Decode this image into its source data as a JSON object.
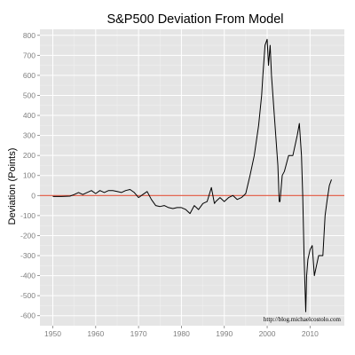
{
  "chart_data": {
    "type": "line",
    "title": "S&P500 Deviation From Model",
    "xlabel": "",
    "ylabel": "Deviation (Points)",
    "xlim": [
      1947,
      2018
    ],
    "ylim": [
      -650,
      830
    ],
    "x_ticks": [
      1950,
      1960,
      1970,
      1980,
      1990,
      2000,
      2010
    ],
    "y_ticks": [
      -600,
      -500,
      -400,
      -300,
      -200,
      -100,
      0,
      100,
      200,
      300,
      400,
      500,
      600,
      700,
      800
    ],
    "grid": true,
    "legend": "none",
    "series": [
      {
        "x": [
          1950,
          1952,
          1954,
          1955,
          1956,
          1957,
          1958,
          1959,
          1960,
          1961,
          1962,
          1963,
          1964,
          1965,
          1966,
          1967,
          1968,
          1969,
          1970,
          1971,
          1972,
          1973,
          1974,
          1975,
          1976,
          1977,
          1978,
          1979,
          1980,
          1981,
          1982,
          1983,
          1984,
          1985,
          1986,
          1987,
          1987.7,
          1988,
          1989,
          1990,
          1991,
          1992,
          1993,
          1994,
          1995,
          1996,
          1997,
          1998,
          1998.7,
          1999,
          1999.5,
          2000,
          2000.3,
          2000.7,
          2001,
          2001.5,
          2002,
          2002.5,
          2002.8,
          2003,
          2003.5,
          2004,
          2005,
          2006,
          2007,
          2007.5,
          2008,
          2008.3,
          2008.6,
          2009,
          2009.2,
          2009.5,
          2010,
          2010.5,
          2011,
          2011.5,
          2012,
          2013,
          2013.5,
          2014,
          2014.5,
          2015
        ],
        "values": [
          -5,
          -5,
          -3,
          5,
          15,
          5,
          15,
          25,
          10,
          25,
          15,
          25,
          25,
          20,
          15,
          25,
          30,
          15,
          -10,
          5,
          20,
          -20,
          -50,
          -55,
          -50,
          -60,
          -65,
          -60,
          -60,
          -70,
          -90,
          -50,
          -70,
          -40,
          -30,
          40,
          -40,
          -30,
          -10,
          -30,
          -10,
          0,
          -20,
          -10,
          10,
          100,
          200,
          350,
          500,
          600,
          750,
          780,
          650,
          750,
          600,
          450,
          300,
          150,
          -30,
          -30,
          100,
          120,
          200,
          200,
          300,
          360,
          200,
          0,
          -300,
          -580,
          -400,
          -320,
          -270,
          -250,
          -400,
          -350,
          -300,
          -300,
          -100,
          -20,
          50,
          80
        ]
      }
    ],
    "reference_line": {
      "y": 0,
      "color": "#e0533c"
    },
    "annotation": "http://blog.michaelcostolo.com"
  },
  "colors": {
    "panel_background": "#e5e5e5",
    "grid_major": "#ffffff",
    "grid_minor": "#f2f2f2",
    "line": "#000000",
    "tick_text": "#7f7f7f"
  }
}
